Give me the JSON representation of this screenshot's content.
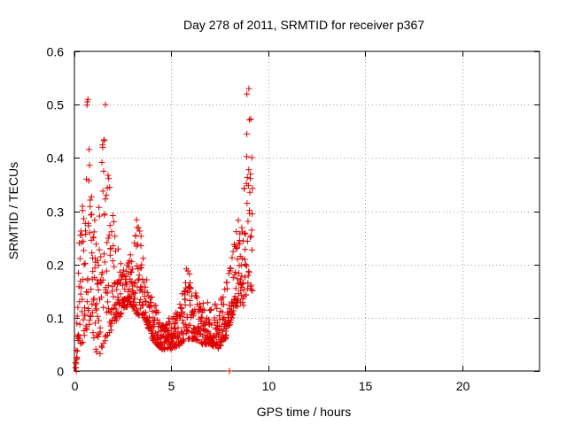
{
  "chart_data": {
    "type": "scatter",
    "title": "Day 278 of 2011, SRMTID for receiver p367",
    "xlabel": "GPS time / hours",
    "ylabel": "SRMTID / TECUs",
    "xlim": [
      0,
      24
    ],
    "ylim": [
      0,
      0.6
    ],
    "xticks": [
      0,
      5,
      10,
      15,
      20
    ],
    "xtick_labels": [
      "0",
      "5",
      "10",
      "15",
      "20"
    ],
    "yticks": [
      0,
      0.1,
      0.2,
      0.3,
      0.4,
      0.5,
      0.6
    ],
    "ytick_labels": [
      "0",
      "0.1",
      "0.2",
      "0.3",
      "0.4",
      "0.5",
      "0.6"
    ],
    "grid": true,
    "marker": "+",
    "color": "#e00000",
    "series": [
      {
        "name": "SRMTID",
        "envelope": [
          [
            0.05,
            0.0,
            0.01
          ],
          [
            0.25,
            0.05,
            0.25
          ],
          [
            0.5,
            0.05,
            0.34
          ],
          [
            0.65,
            0.08,
            0.52
          ],
          [
            0.9,
            0.08,
            0.35
          ],
          [
            1.2,
            0.02,
            0.27
          ],
          [
            1.5,
            0.05,
            0.5
          ],
          [
            1.75,
            0.07,
            0.38
          ],
          [
            2.0,
            0.08,
            0.3
          ],
          [
            2.3,
            0.1,
            0.22
          ],
          [
            2.6,
            0.12,
            0.19
          ],
          [
            3.0,
            0.12,
            0.23
          ],
          [
            3.3,
            0.1,
            0.32
          ],
          [
            3.6,
            0.1,
            0.2
          ],
          [
            4.0,
            0.06,
            0.14
          ],
          [
            4.5,
            0.04,
            0.1
          ],
          [
            5.0,
            0.04,
            0.1
          ],
          [
            5.5,
            0.05,
            0.13
          ],
          [
            5.8,
            0.06,
            0.22
          ],
          [
            6.2,
            0.06,
            0.15
          ],
          [
            6.6,
            0.05,
            0.13
          ],
          [
            7.0,
            0.05,
            0.14
          ],
          [
            7.4,
            0.04,
            0.12
          ],
          [
            7.8,
            0.06,
            0.16
          ],
          [
            8.3,
            0.12,
            0.25
          ],
          [
            8.7,
            0.12,
            0.35
          ],
          [
            8.95,
            0.15,
            0.52
          ],
          [
            9.2,
            0.15,
            0.45
          ]
        ],
        "extra_points": [
          [
            0.1,
            0.0
          ],
          [
            8.0,
            0.0
          ],
          [
            0.7,
            0.51
          ],
          [
            1.6,
            0.5
          ],
          [
            8.9,
            0.52
          ],
          [
            9.0,
            0.53
          ]
        ]
      }
    ]
  }
}
